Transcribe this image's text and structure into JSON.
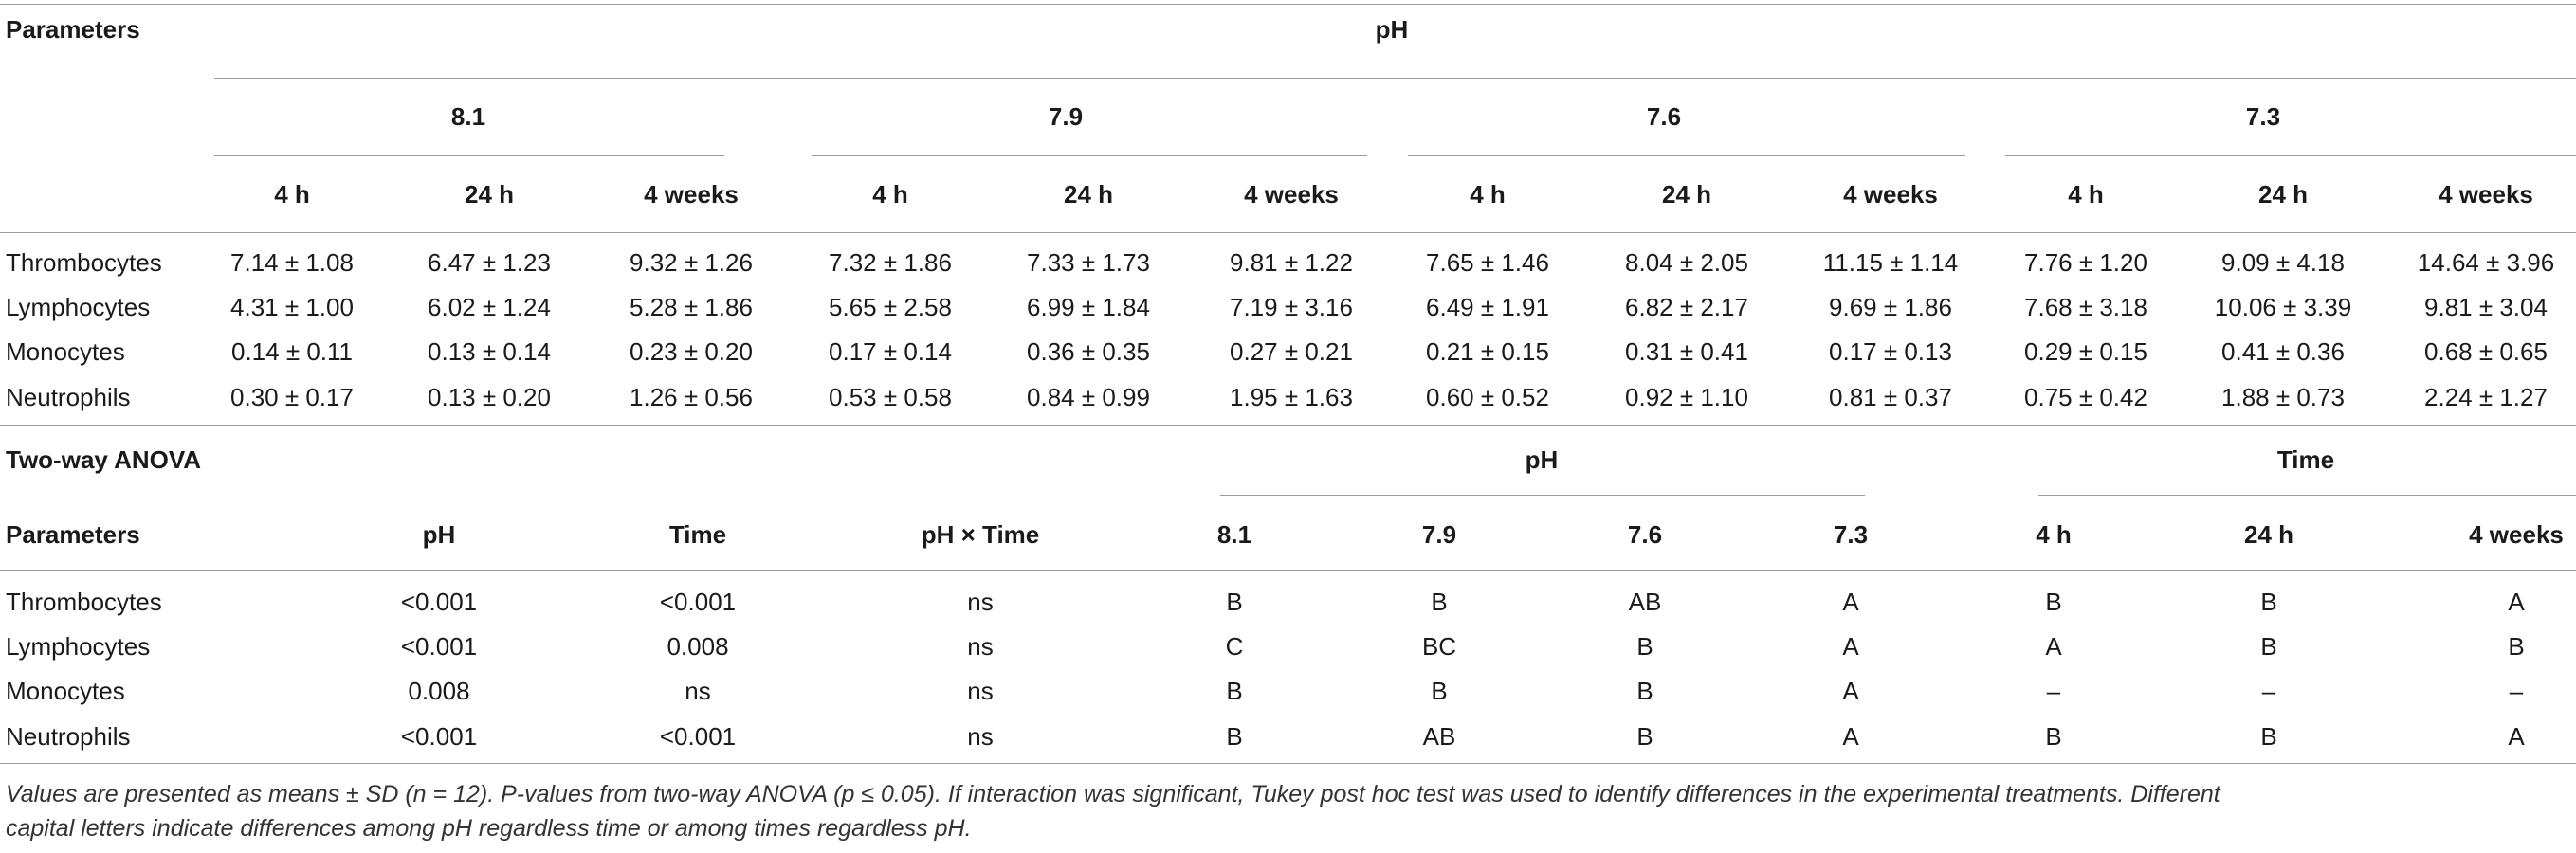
{
  "top_table": {
    "row_header": "Parameters",
    "group_header": "pH",
    "ph_levels": [
      "8.1",
      "7.9",
      "7.6",
      "7.3"
    ],
    "times": [
      "4 h",
      "24 h",
      "4 weeks"
    ],
    "rows": [
      {
        "name": "Thrombocytes",
        "values": [
          "7.14 ± 1.08",
          "6.47 ± 1.23",
          "9.32 ± 1.26",
          "7.32 ± 1.86",
          "7.33 ± 1.73",
          "9.81 ± 1.22",
          "7.65 ± 1.46",
          "8.04 ± 2.05",
          "11.15 ± 1.14",
          "7.76 ± 1.20",
          "9.09 ± 4.18",
          "14.64 ± 3.96"
        ]
      },
      {
        "name": "Lymphocytes",
        "values": [
          "4.31 ± 1.00",
          "6.02 ± 1.24",
          "5.28 ± 1.86",
          "5.65 ± 2.58",
          "6.99 ± 1.84",
          "7.19 ± 3.16",
          "6.49 ± 1.91",
          "6.82 ± 2.17",
          "9.69 ± 1.86",
          "7.68 ± 3.18",
          "10.06 ± 3.39",
          "9.81 ± 3.04"
        ]
      },
      {
        "name": "Monocytes",
        "values": [
          "0.14 ± 0.11",
          "0.13 ± 0.14",
          "0.23 ± 0.20",
          "0.17 ± 0.14",
          "0.36 ± 0.35",
          "0.27 ± 0.21",
          "0.21 ± 0.15",
          "0.31 ± 0.41",
          "0.17 ± 0.13",
          "0.29 ± 0.15",
          "0.41 ± 0.36",
          "0.68 ± 0.65"
        ]
      },
      {
        "name": "Neutrophils",
        "values": [
          "0.30 ± 0.17",
          "0.13 ± 0.20",
          "1.26 ± 0.56",
          "0.53 ± 0.58",
          "0.84 ± 0.99",
          "1.95 ± 1.63",
          "0.60 ± 0.52",
          "0.92 ± 1.10",
          "0.81 ± 0.37",
          "0.75 ± 0.42",
          "1.88 ± 0.73",
          "2.24 ± 1.27"
        ]
      }
    ]
  },
  "anova_table": {
    "title": "Two-way ANOVA",
    "ph_group_header": "pH",
    "time_group_header": "Time",
    "columns": [
      "Parameters",
      "pH",
      "Time",
      "pH × Time",
      "8.1",
      "7.9",
      "7.6",
      "7.3",
      "4 h",
      "24 h",
      "4 weeks"
    ],
    "rows": [
      {
        "name": "Thrombocytes",
        "values": [
          "<0.001",
          "<0.001",
          "ns",
          "B",
          "B",
          "AB",
          "A",
          "B",
          "B",
          "A"
        ]
      },
      {
        "name": "Lymphocytes",
        "values": [
          "<0.001",
          "0.008",
          "ns",
          "C",
          "BC",
          "B",
          "A",
          "A",
          "B",
          "B"
        ]
      },
      {
        "name": "Monocytes",
        "values": [
          "0.008",
          "ns",
          "ns",
          "B",
          "B",
          "B",
          "A",
          "–",
          "–",
          "–"
        ]
      },
      {
        "name": "Neutrophils",
        "values": [
          "<0.001",
          "<0.001",
          "ns",
          "B",
          "AB",
          "B",
          "A",
          "B",
          "B",
          "A"
        ]
      }
    ]
  },
  "footnote": [
    "Values are presented as means ± SD (n = 12). P-values from two-way ANOVA (p ≤ 0.05). If interaction was significant, Tukey post hoc test was used to identify differences in the experimental treatments. Different",
    "capital letters indicate differences among pH regardless time or among times regardless pH."
  ]
}
